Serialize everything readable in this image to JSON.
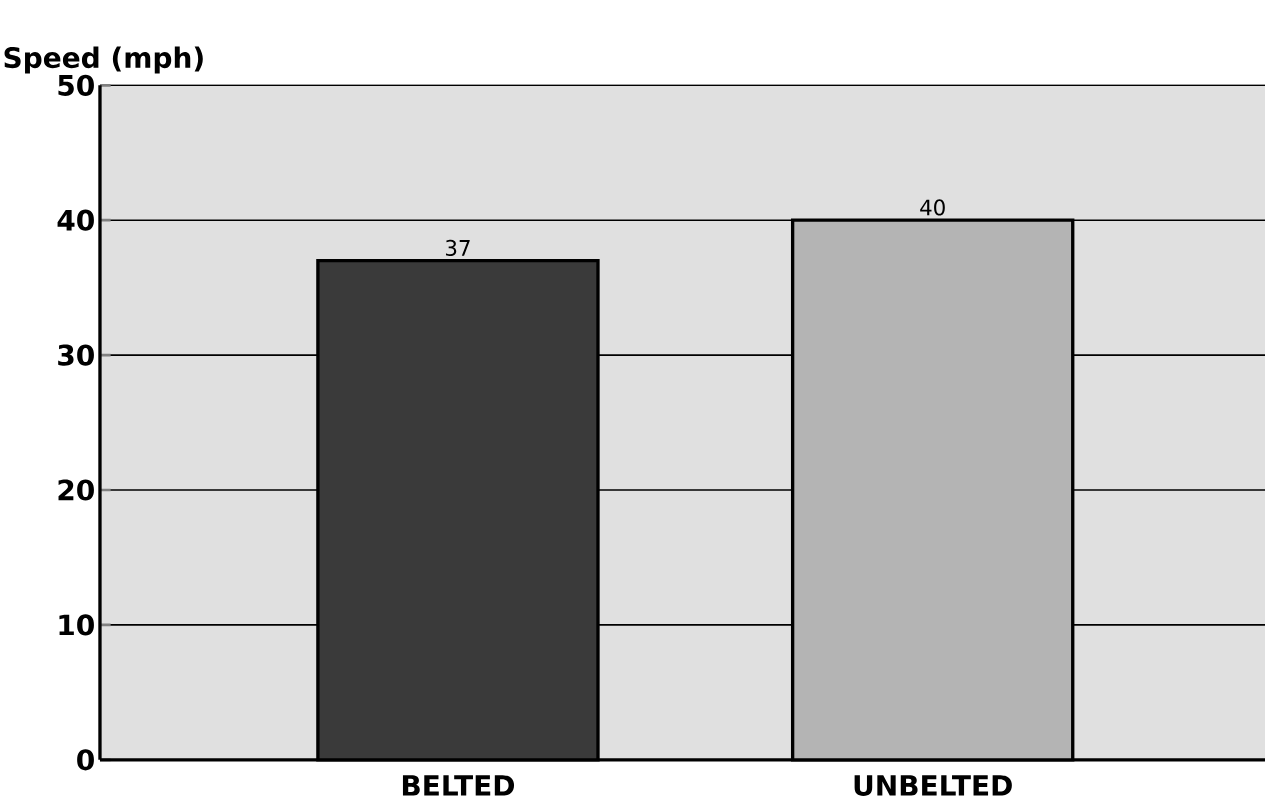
{
  "chart_data": {
    "type": "bar",
    "ylabel": "Speed (mph)",
    "categories": [
      "BELTED",
      "UNBELTED"
    ],
    "values": [
      37,
      40
    ],
    "colors": [
      "#3a3a3a",
      "#b4b4b4"
    ],
    "ylim": [
      0,
      50
    ],
    "yticks": [
      0,
      10,
      20,
      30,
      40,
      50
    ],
    "grid": "y",
    "data_labels": true
  }
}
